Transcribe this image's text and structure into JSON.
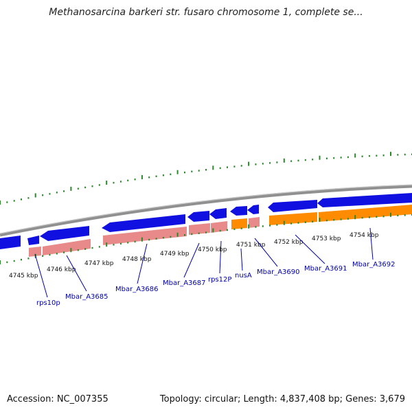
{
  "title": "Methanosarcina barkeri str. fusaro chromosome 1, complete se...",
  "footer": {
    "accession": "Accession: NC_007355",
    "summary": "Topology: circular; Length: 4,837,408 bp; Genes: 3,679"
  },
  "colors": {
    "forward_gene": "#1010e0",
    "reverse_gene": "#1010e0",
    "cds_pink": "#e88a8a",
    "cds_orange": "#ff8c00",
    "backbone": "#888888",
    "ticks": "#2a8a2a",
    "label": "#0000aa"
  },
  "kbp_labels": [
    "4745 kbp",
    "4746 kbp",
    "4747 kbp",
    "4748 kbp",
    "4749 kbp",
    "4750 kbp",
    "4751 kbp",
    "4752 kbp",
    "4753 kbp",
    "4754 kbp"
  ],
  "gene_labels": [
    "rps10p",
    "Mbar_A3685",
    "Mbar_A3686",
    "Mbar_A3687",
    "rps12P",
    "nusA",
    "Mbar_A3690",
    "Mbar_A3691",
    "Mbar_A3692"
  ]
}
